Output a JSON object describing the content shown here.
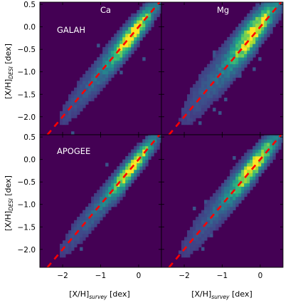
{
  "chart_data": {
    "type": "heatmap",
    "colormap": "viridis",
    "background_color": "#440154",
    "identity_line_color": "#ff0000",
    "xlim": [
      -2.6,
      0.6
    ],
    "ylim": [
      -2.4,
      0.55
    ],
    "x_ticks": [
      -2,
      -1,
      0
    ],
    "y_ticks": [
      0.5,
      0.0,
      -0.5,
      -1.0,
      -1.5,
      -2.0
    ],
    "xlabel": {
      "main": "[X/H]",
      "sub": "survey",
      "unit": " [dex]"
    },
    "ylabel": {
      "main": "[X/H]",
      "sub": "DESI",
      "unit": " [dex]"
    },
    "panels": [
      {
        "row": 0,
        "col": 0,
        "element": "Ca",
        "survey": "GALAH",
        "spread": 0.17,
        "offset": 0.0
      },
      {
        "row": 0,
        "col": 1,
        "element": "Mg",
        "survey": "",
        "spread": 0.22,
        "offset": 0.05
      },
      {
        "row": 1,
        "col": 0,
        "element": "",
        "survey": "APOGEE",
        "spread": 0.15,
        "offset": 0.0
      },
      {
        "row": 1,
        "col": 1,
        "element": "",
        "survey": "",
        "spread": 0.18,
        "offset": 0.03
      }
    ],
    "grid": false,
    "legend": "none"
  }
}
